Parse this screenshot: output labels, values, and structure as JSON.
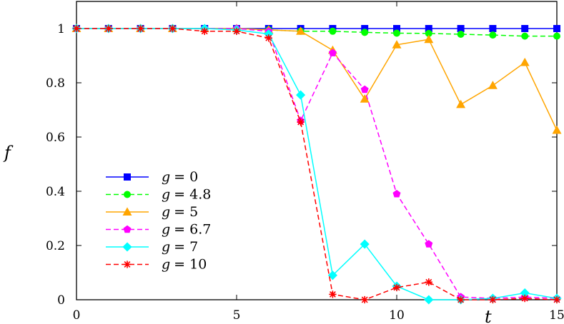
{
  "chart_data": {
    "type": "line",
    "title": "",
    "xlabel": "t",
    "ylabel": "f",
    "xlim": [
      0,
      15
    ],
    "ylim": [
      0,
      1.1
    ],
    "xticks": [
      0,
      5,
      10,
      15
    ],
    "yticks": [
      0,
      0.2,
      0.4,
      0.6,
      0.8,
      1
    ],
    "legend_position": "lower-left",
    "x": [
      0,
      1,
      2,
      3,
      4,
      5,
      6,
      7,
      8,
      9,
      10,
      11,
      12,
      13,
      14,
      15
    ],
    "series": [
      {
        "name": "g = 0",
        "label_var": "g",
        "label_val": "= 0",
        "color": "#0000ff",
        "dash": "solid",
        "marker": "square",
        "values": [
          1,
          1,
          1,
          1,
          1,
          1,
          1,
          1,
          1,
          1,
          1,
          1,
          1,
          1,
          1,
          1
        ]
      },
      {
        "name": "g = 4.8",
        "label_var": "g",
        "label_val": "= 4.8",
        "color": "#00ff00",
        "dash": "dashed",
        "marker": "circle",
        "values": [
          1,
          1,
          1,
          1,
          1,
          1,
          0.995,
          0.99,
          0.99,
          0.986,
          0.983,
          0.982,
          0.979,
          0.976,
          0.972,
          0.972
        ]
      },
      {
        "name": "g = 5",
        "label_var": "g",
        "label_val": "= 5",
        "color": "#ffa500",
        "dash": "solid",
        "marker": "triangle",
        "values": [
          1,
          1,
          1,
          1,
          1,
          1,
          0.995,
          0.99,
          0.92,
          0.74,
          0.94,
          0.96,
          0.72,
          0.79,
          0.875,
          0.625
        ]
      },
      {
        "name": "g = 6.7",
        "label_var": "g",
        "label_val": "= 6.7",
        "color": "#ff00ff",
        "dash": "dashed",
        "marker": "pentagon",
        "values": [
          1,
          1,
          1,
          1,
          1,
          1,
          0.99,
          0.66,
          0.91,
          0.775,
          0.39,
          0.205,
          0.01,
          0.005,
          0.01,
          0.005
        ]
      },
      {
        "name": "g = 7",
        "label_var": "g",
        "label_val": "= 7",
        "color": "#00ffff",
        "dash": "solid",
        "marker": "diamond",
        "values": [
          1,
          1,
          1,
          1,
          1,
          0.995,
          0.98,
          0.755,
          0.09,
          0.205,
          0.05,
          0.0,
          0.0,
          0.005,
          0.025,
          0.005
        ]
      },
      {
        "name": "g = 10",
        "label_var": "g",
        "label_val": "= 10",
        "color": "#ff0000",
        "dash": "dashed",
        "marker": "star",
        "values": [
          1,
          1,
          1,
          1,
          0.99,
          0.99,
          0.965,
          0.655,
          0.02,
          0.0,
          0.045,
          0.065,
          0.0,
          0.0,
          0.005,
          0.0
        ]
      }
    ]
  }
}
